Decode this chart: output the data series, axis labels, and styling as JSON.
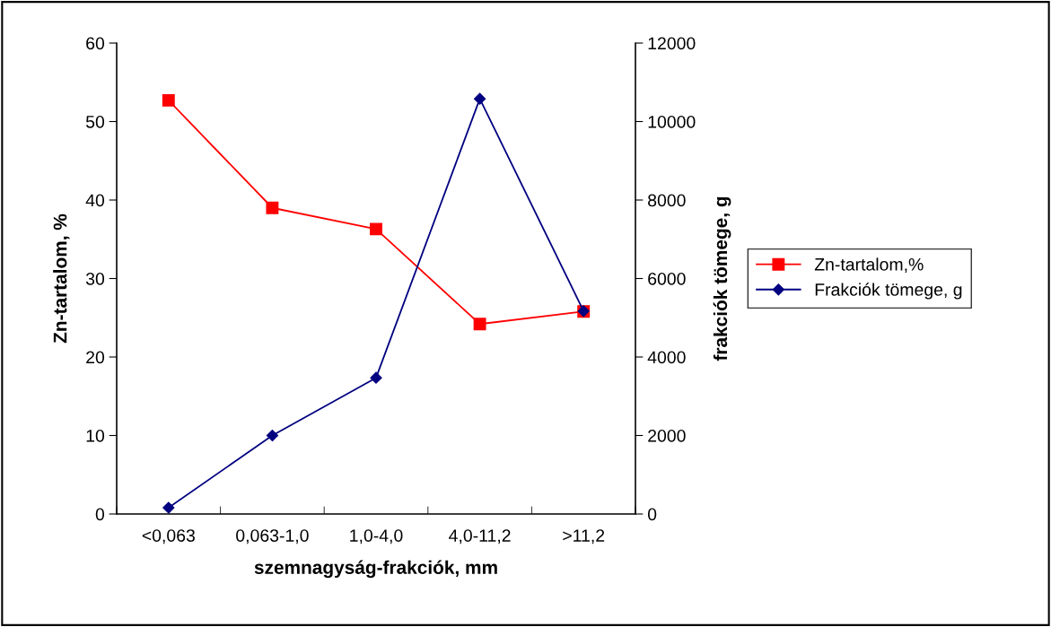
{
  "chart_data": {
    "type": "line",
    "categories": [
      "<0,063",
      "0,063-1,0",
      "1,0-4,0",
      "4,0-11,2",
      ">11,2"
    ],
    "xlabel": "szemnagyság-frakciók, mm",
    "ylabel": "Zn-tartalom, %",
    "y2label": "frakciók tömege, g",
    "ylim": [
      0,
      60
    ],
    "yticks": [
      0,
      10,
      20,
      30,
      40,
      50,
      60
    ],
    "y2lim": [
      0,
      12000
    ],
    "y2ticks": [
      0,
      2000,
      4000,
      6000,
      8000,
      10000,
      12000
    ],
    "series": [
      {
        "name": "Zn-tartalom,%",
        "color": "#ff0000",
        "marker": "square",
        "values": [
          52.7,
          39.0,
          36.3,
          24.2,
          25.8
        ]
      },
      {
        "name": "Frakciók tömege, g",
        "color": "#000080",
        "marker": "diamond",
        "axis": "y2",
        "values": [
          160,
          2000,
          3470,
          10580,
          5170
        ]
      }
    ],
    "legend": "right",
    "grid": false,
    "line_style": "solid"
  }
}
